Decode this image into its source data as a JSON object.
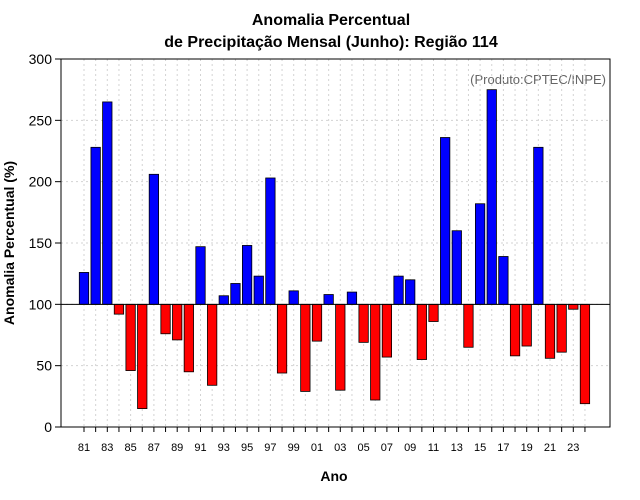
{
  "chart_data": {
    "type": "bar",
    "title_line1": "Anomalia Percentual",
    "title_line2": "de Precipitação Mensal (Junho): Região 114",
    "xlabel": "Ano",
    "ylabel": "Anomalia Percentual (%)",
    "annotation": "(Produto:CPTEC/INPE)",
    "baseline": 100,
    "ylim": [
      0,
      300
    ],
    "yticks": [
      0,
      50,
      100,
      150,
      200,
      250,
      300
    ],
    "xtick_labels": [
      "81",
      "83",
      "85",
      "87",
      "89",
      "91",
      "93",
      "95",
      "97",
      "99",
      "01",
      "03",
      "05",
      "07",
      "09",
      "11",
      "13",
      "15",
      "17",
      "19",
      "21",
      "23"
    ],
    "categories": [
      1981,
      1982,
      1983,
      1984,
      1985,
      1986,
      1987,
      1988,
      1989,
      1990,
      1991,
      1992,
      1993,
      1994,
      1995,
      1996,
      1997,
      1998,
      1999,
      2000,
      2001,
      2002,
      2003,
      2004,
      2005,
      2006,
      2007,
      2008,
      2009,
      2010,
      2011,
      2012,
      2013,
      2014,
      2015,
      2016,
      2017,
      2018,
      2019,
      2020,
      2021,
      2022,
      2023,
      2024
    ],
    "values": [
      126,
      228,
      265,
      92,
      46,
      15,
      206,
      76,
      71,
      45,
      147,
      34,
      107,
      117,
      148,
      123,
      203,
      44,
      111,
      29,
      70,
      108,
      30,
      110,
      69,
      22,
      57,
      123,
      120,
      55,
      86,
      236,
      160,
      65,
      182,
      275,
      139,
      58,
      66,
      228,
      56,
      61,
      96,
      19
    ],
    "grid": true,
    "colors": {
      "above": "#0000ff",
      "below": "#ff0000",
      "grid": "#d3d3d3",
      "annotation": "#666666"
    }
  }
}
